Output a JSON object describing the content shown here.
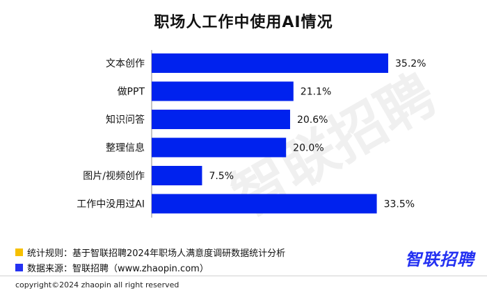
{
  "title": "职场人工作中使用AI情况",
  "watermark": "智联招聘",
  "colors": {
    "bar": "#0022ee",
    "note1": "#f6c000",
    "note2": "#2431f2"
  },
  "chart_data": {
    "type": "bar",
    "orientation": "horizontal",
    "title": "职场人工作中使用AI情况",
    "categories": [
      "文本创作",
      "做PPT",
      "知识问答",
      "整理信息",
      "图片/视频创作",
      "工作中没用过AI"
    ],
    "values": [
      35.2,
      21.1,
      20.6,
      20.0,
      7.5,
      33.5
    ],
    "value_labels": [
      "35.2%",
      "21.1%",
      "20.6%",
      "20.0%",
      "7.5%",
      "33.5%"
    ],
    "unit": "%",
    "xlim": [
      0,
      35.2
    ]
  },
  "notes": [
    "统计规则：基于智联招聘2024年职场人满意度调研数据统计分析",
    "数据来源：智联招聘（www.zhaopin.com）"
  ],
  "logo": "智联招聘",
  "copyright": "copyright©2024 zhaopin all right reserved"
}
